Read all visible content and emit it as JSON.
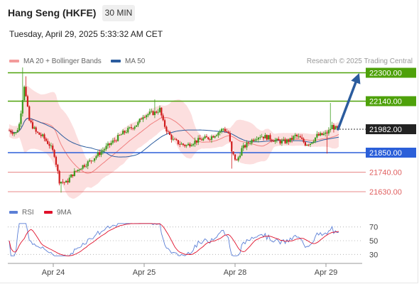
{
  "header": {
    "title": "Hang Seng (HKFE)",
    "timeframe": "30 MIN",
    "datetime": "Tuesday, April 29, 2025 5:33:32 AM CET"
  },
  "legend": {
    "bollinger": {
      "label": "MA 20 + Bollinger Bands",
      "color": "#f39b9b"
    },
    "ma50": {
      "label": "MA 50",
      "color": "#2b5c9e"
    },
    "credit": "Research © 2025 Trading Central"
  },
  "rsi_legend": {
    "rsi": {
      "label": "RSI",
      "color": "#5b7fd6"
    },
    "ma9": {
      "label": "9MA",
      "color": "#e0102a"
    }
  },
  "chart_data": [
    {
      "type": "candlestick",
      "x_tick_labels": [
        "Apr 24",
        "Apr 25",
        "Apr 28",
        "Apr 29"
      ],
      "ylim": [
        21590,
        22330
      ],
      "current_price": {
        "value": 21982,
        "label": "21982.00"
      },
      "levels": [
        {
          "value": 22300,
          "label": "22300.00",
          "kind": "resistance",
          "color": "#4ea10a"
        },
        {
          "value": 22140,
          "label": "22140.00",
          "kind": "resistance",
          "color": "#4ea10a"
        },
        {
          "value": 21850,
          "label": "21850.00",
          "kind": "pivot",
          "color": "#2b5fd9"
        },
        {
          "value": 21740,
          "label": "21740.00",
          "kind": "support",
          "color": "#e06060"
        },
        {
          "value": 21630,
          "label": "21630.00",
          "kind": "support",
          "color": "#e06060"
        }
      ],
      "forecast_arrow": {
        "from": 21982,
        "to": 22300,
        "color": "#2b5c9e"
      },
      "up_color": "#3d9c1e",
      "down_color": "#d01c1c"
    },
    {
      "type": "line",
      "name": "RSI",
      "ylim": [
        20,
        80
      ],
      "y_tick_labels": [
        "70",
        "50",
        "30"
      ],
      "y_ticks": [
        70,
        50,
        30
      ]
    }
  ]
}
